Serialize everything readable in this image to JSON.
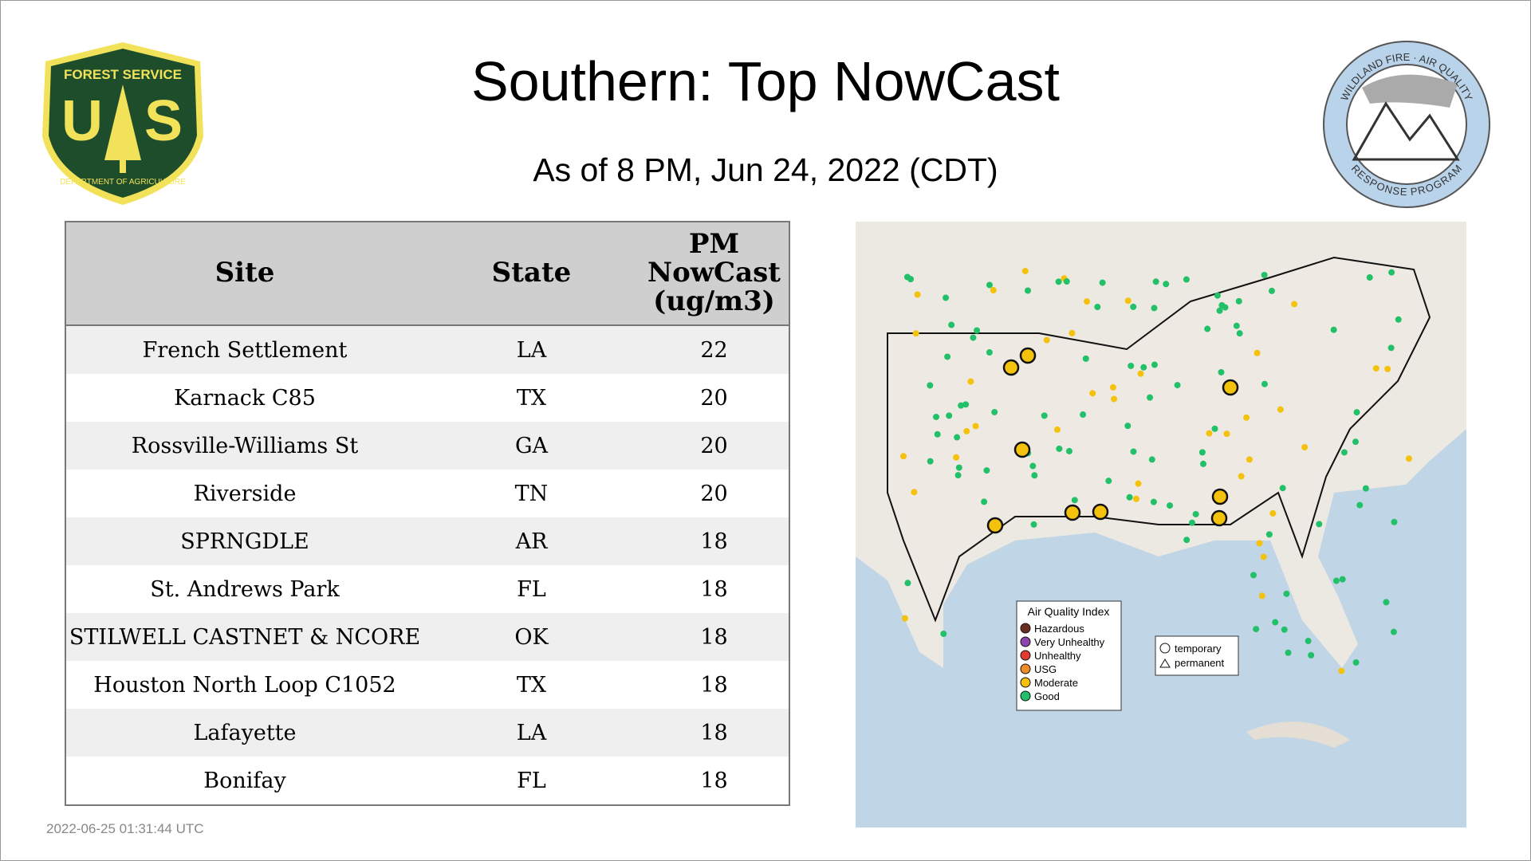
{
  "header": {
    "title": "Southern: Top NowCast",
    "subtitle": "As of  8 PM, Jun 24, 2022 (CDT)"
  },
  "logos": {
    "left": {
      "top_text": "FOREST SERVICE",
      "letter_left": "U",
      "letter_right": "S",
      "bottom_text": "DEPARTMENT OF AGRICULTURE"
    },
    "right": {
      "top_text": "WILDLAND FIRE · AIR QUALITY",
      "bottom_text": "RESPONSE PROGRAM"
    }
  },
  "table": {
    "columns": [
      "Site",
      "State",
      "PM NowCast (ug/m3)"
    ],
    "rows": [
      [
        "French Settlement",
        "LA",
        22
      ],
      [
        "Karnack C85",
        "TX",
        20
      ],
      [
        "Rossville-Williams St",
        "GA",
        20
      ],
      [
        "Riverside",
        "TN",
        20
      ],
      [
        "SPRNGDLE",
        "AR",
        18
      ],
      [
        "St. Andrews Park",
        "FL",
        18
      ],
      [
        "STILWELL CASTNET & NCORE",
        "OK",
        18
      ],
      [
        "Houston North Loop C1052",
        "TX",
        18
      ],
      [
        "Lafayette",
        "LA",
        18
      ],
      [
        "Bonifay",
        "FL",
        18
      ]
    ]
  },
  "map": {
    "legend": {
      "title": "Air Quality Index",
      "items": [
        "Hazardous",
        "Very Unhealthy",
        "Unhealthy",
        "USG",
        "Moderate",
        "Good"
      ]
    },
    "shape_legend": [
      "temporary",
      "permanent"
    ]
  },
  "footer": {
    "timestamp": "2022-06-25 01:31:44 UTC"
  }
}
